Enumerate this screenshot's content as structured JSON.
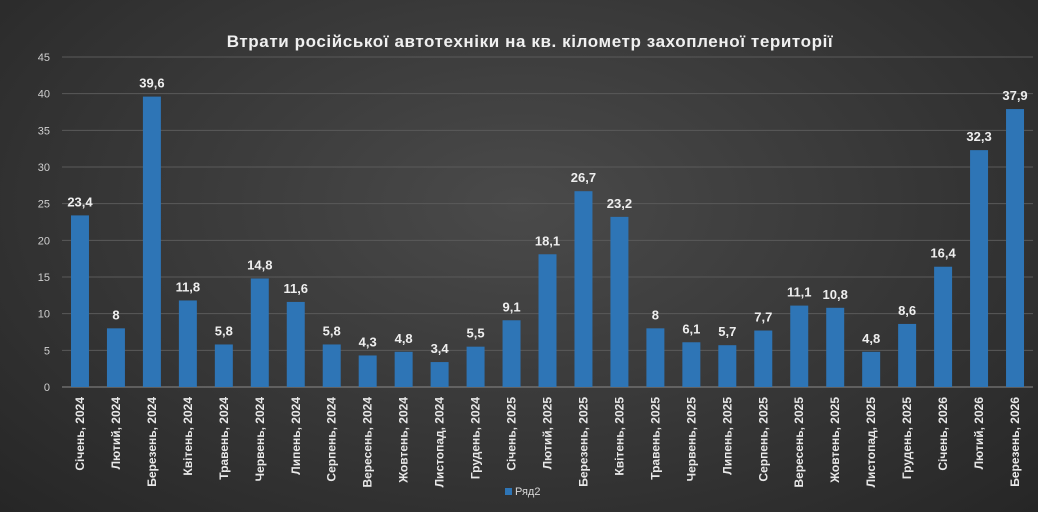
{
  "colors": {
    "bar": "#2e75b6",
    "grid": "#5a5a5a",
    "axis": "#8a8a8a"
  },
  "chart_data": {
    "type": "bar",
    "title": "Втрати російської автотехніки на кв. кілометр захопленої території",
    "categories": [
      "Січень, 2024",
      "Лютий, 2024",
      "Березень, 2024",
      "Квітень, 2024",
      "Травень, 2024",
      "Червень, 2024",
      "Липень, 2024",
      "Серпень, 2024",
      "Вересень, 2024",
      "Жовтень, 2024",
      "Листопад, 2024",
      "Грудень, 2024",
      "Січень, 2025",
      "Лютий, 2025",
      "Березень, 2025",
      "Квітень, 2025",
      "Травень, 2025",
      "Червень, 2025",
      "Липень, 2025",
      "Серпень, 2025",
      "Вересень, 2025",
      "Жовтень, 2025",
      "Листопад, 2025",
      "Грудень, 2025",
      "Січень, 2026",
      "Лютий, 2026",
      "Березень, 2026"
    ],
    "series": [
      {
        "name": "Ряд2",
        "values": [
          23.4,
          8,
          39.6,
          11.8,
          5.8,
          14.8,
          11.6,
          5.8,
          4.3,
          4.8,
          3.4,
          5.5,
          9.1,
          18.1,
          26.7,
          23.2,
          8,
          6.1,
          5.7,
          7.7,
          11.1,
          10.8,
          4.8,
          8.6,
          16.4,
          32.3,
          37.9
        ],
        "labels": [
          "23,4",
          "8",
          "39,6",
          "11,8",
          "5,8",
          "14,8",
          "11,6",
          "5,8",
          "4,3",
          "4,8",
          "3,4",
          "5,5",
          "9,1",
          "18,1",
          "26,7",
          "23,2",
          "8",
          "6,1",
          "5,7",
          "7,7",
          "11,1",
          "10,8",
          "4,8",
          "8,6",
          "16,4",
          "32,3",
          "37,9"
        ]
      }
    ],
    "yticks": [
      0,
      5,
      10,
      15,
      20,
      25,
      30,
      35,
      40,
      45
    ],
    "ylim": [
      0,
      45
    ],
    "xlabel": "",
    "ylabel": "",
    "grid": true,
    "legend": "bottom"
  }
}
